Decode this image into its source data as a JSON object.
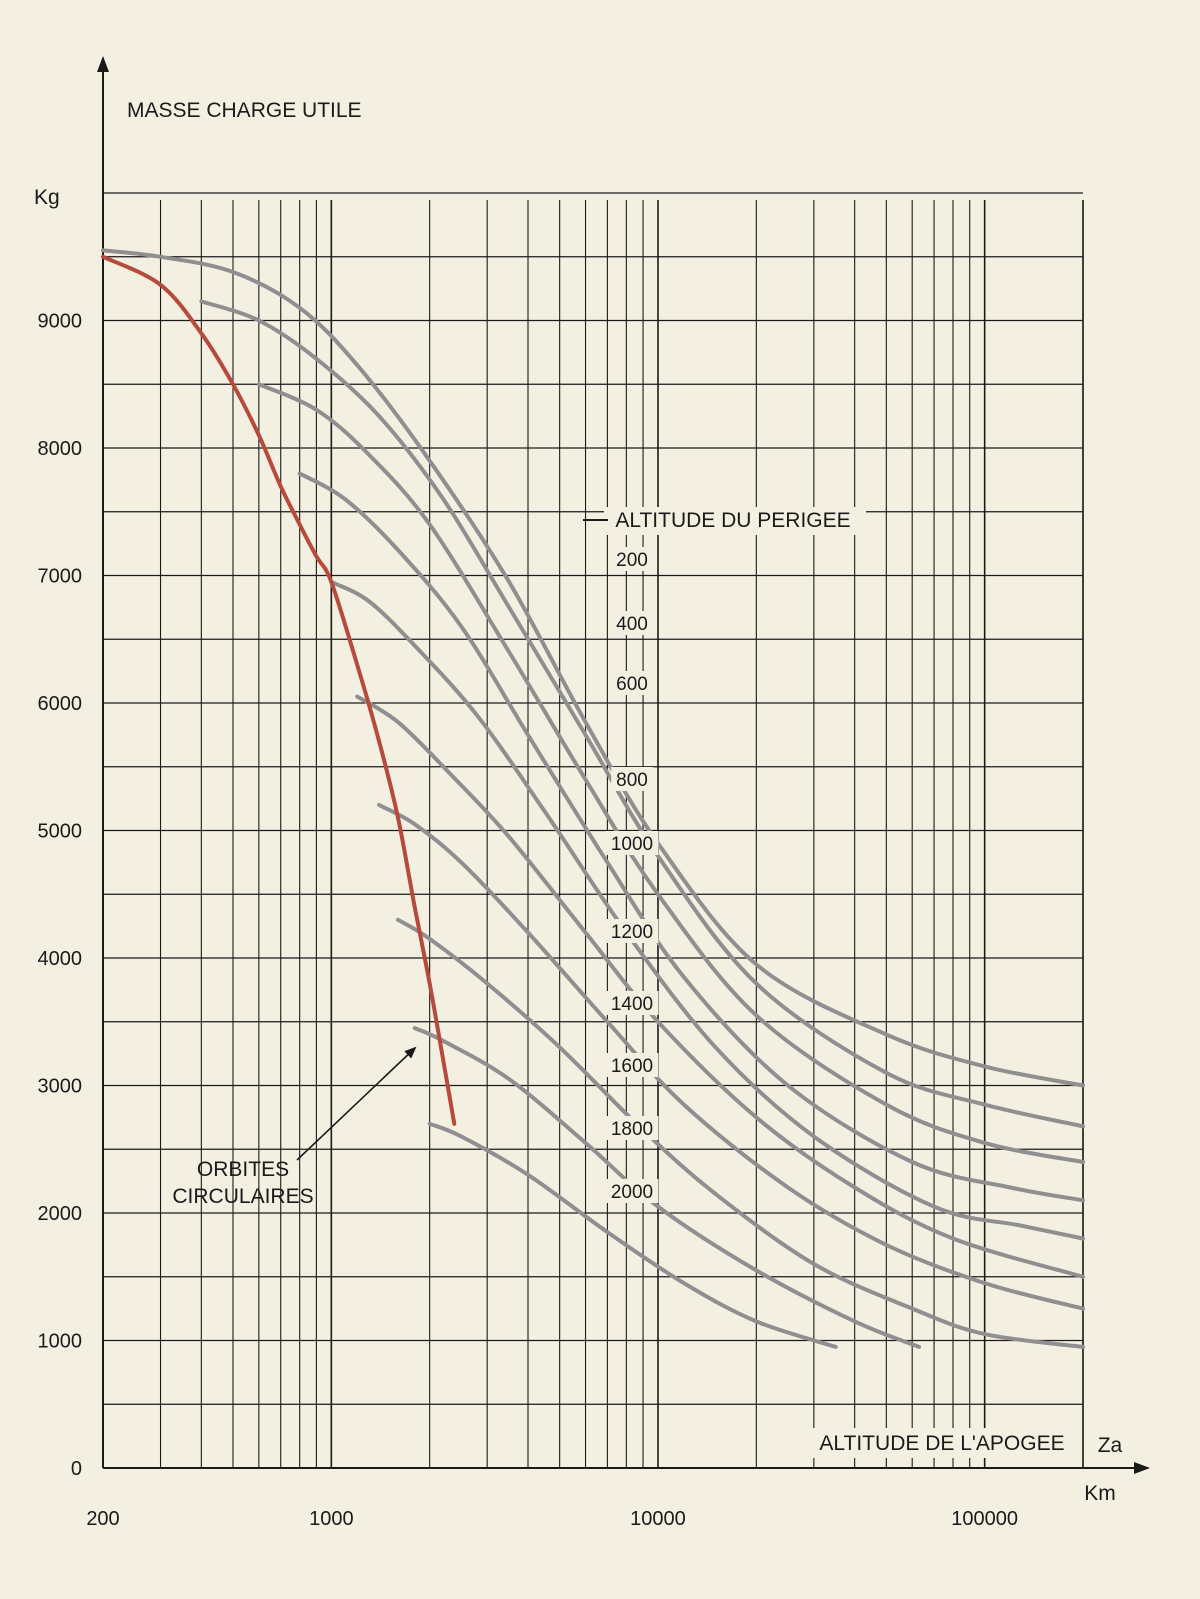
{
  "chart_data": {
    "type": "line",
    "title": "MASSE CHARGE UTILE",
    "y_unit": "Kg",
    "x_label": "ALTITUDE DE L'APOGEE",
    "x_symbol": "Za",
    "x_unit": "Km",
    "x_scale": "log",
    "x_range": [
      200,
      200000
    ],
    "y_range": [
      0,
      10000
    ],
    "grid": true,
    "x_tick_labels": [
      "200",
      "1000",
      "10000",
      "100000"
    ],
    "y_tick_labels": [
      "0",
      "1000",
      "2000",
      "3000",
      "4000",
      "5000",
      "6000",
      "7000",
      "8000",
      "9000"
    ],
    "legend_title": "ALTITUDE DU PERIGEE",
    "circular": {
      "name": "ORBITES CIRCULAIRES",
      "label_lines": [
        "ORBITES",
        "CIRCULAIRES"
      ],
      "color": "#b84a3c",
      "points": [
        [
          200,
          9500
        ],
        [
          300,
          9280
        ],
        [
          400,
          8900
        ],
        [
          500,
          8500
        ],
        [
          600,
          8100
        ],
        [
          700,
          7700
        ],
        [
          800,
          7400
        ],
        [
          900,
          7150
        ],
        [
          1000,
          6950
        ],
        [
          1200,
          6300
        ],
        [
          1400,
          5700
        ],
        [
          1600,
          5100
        ],
        [
          1800,
          4400
        ],
        [
          2000,
          3800
        ],
        [
          2200,
          3200
        ],
        [
          2380,
          2700
        ]
      ]
    },
    "series_color": "#8f8f8f",
    "series": [
      {
        "name": "200",
        "points": [
          [
            200,
            9550
          ],
          [
            300,
            9500
          ],
          [
            500,
            9380
          ],
          [
            800,
            9100
          ],
          [
            1200,
            8650
          ],
          [
            2000,
            7900
          ],
          [
            3500,
            6950
          ],
          [
            6000,
            5850
          ],
          [
            10000,
            4900
          ],
          [
            20000,
            3950
          ],
          [
            50000,
            3400
          ],
          [
            100000,
            3150
          ],
          [
            200000,
            3000
          ]
        ]
      },
      {
        "name": "400",
        "points": [
          [
            400,
            9150
          ],
          [
            600,
            9000
          ],
          [
            900,
            8700
          ],
          [
            1400,
            8250
          ],
          [
            2200,
            7600
          ],
          [
            3500,
            6750
          ],
          [
            6000,
            5750
          ],
          [
            10000,
            4800
          ],
          [
            20000,
            3800
          ],
          [
            50000,
            3100
          ],
          [
            100000,
            2850
          ],
          [
            200000,
            2680
          ]
        ]
      },
      {
        "name": "600",
        "points": [
          [
            600,
            8500
          ],
          [
            900,
            8300
          ],
          [
            1300,
            7950
          ],
          [
            2000,
            7400
          ],
          [
            3500,
            6400
          ],
          [
            6000,
            5400
          ],
          [
            10000,
            4500
          ],
          [
            20000,
            3550
          ],
          [
            50000,
            2850
          ],
          [
            100000,
            2550
          ],
          [
            200000,
            2400
          ]
        ]
      },
      {
        "name": "800",
        "points": [
          [
            800,
            7800
          ],
          [
            1100,
            7600
          ],
          [
            1600,
            7200
          ],
          [
            2500,
            6600
          ],
          [
            4000,
            5750
          ],
          [
            7000,
            4750
          ],
          [
            12000,
            3850
          ],
          [
            25000,
            3000
          ],
          [
            60000,
            2400
          ],
          [
            120000,
            2200
          ],
          [
            200000,
            2100
          ]
        ]
      },
      {
        "name": "1000",
        "points": [
          [
            1000,
            6950
          ],
          [
            1300,
            6800
          ],
          [
            1800,
            6450
          ],
          [
            2800,
            5900
          ],
          [
            4500,
            5150
          ],
          [
            8000,
            4200
          ],
          [
            15000,
            3300
          ],
          [
            30000,
            2600
          ],
          [
            70000,
            2050
          ],
          [
            130000,
            1900
          ],
          [
            200000,
            1800
          ]
        ]
      },
      {
        "name": "1200",
        "points": [
          [
            1200,
            6050
          ],
          [
            1600,
            5850
          ],
          [
            2300,
            5450
          ],
          [
            3500,
            4950
          ],
          [
            6000,
            4200
          ],
          [
            10000,
            3500
          ],
          [
            20000,
            2750
          ],
          [
            40000,
            2200
          ],
          [
            80000,
            1800
          ],
          [
            200000,
            1500
          ]
        ]
      },
      {
        "name": "1400",
        "points": [
          [
            1400,
            5200
          ],
          [
            1800,
            5050
          ],
          [
            2500,
            4750
          ],
          [
            4000,
            4200
          ],
          [
            7000,
            3500
          ],
          [
            12000,
            2850
          ],
          [
            25000,
            2200
          ],
          [
            50000,
            1750
          ],
          [
            100000,
            1450
          ],
          [
            200000,
            1250
          ]
        ]
      },
      {
        "name": "1600",
        "points": [
          [
            1600,
            4300
          ],
          [
            2000,
            4150
          ],
          [
            3000,
            3800
          ],
          [
            5000,
            3300
          ],
          [
            9000,
            2650
          ],
          [
            15000,
            2150
          ],
          [
            30000,
            1600
          ],
          [
            60000,
            1250
          ],
          [
            100000,
            1050
          ],
          [
            200000,
            950
          ]
        ]
      },
      {
        "name": "1800",
        "points": [
          [
            1800,
            3450
          ],
          [
            2200,
            3350
          ],
          [
            3500,
            3050
          ],
          [
            6000,
            2550
          ],
          [
            10000,
            2050
          ],
          [
            20000,
            1550
          ],
          [
            40000,
            1150
          ],
          [
            63000,
            950
          ]
        ]
      },
      {
        "name": "2000",
        "points": [
          [
            2000,
            2700
          ],
          [
            2500,
            2600
          ],
          [
            4000,
            2300
          ],
          [
            7000,
            1850
          ],
          [
            12000,
            1450
          ],
          [
            20000,
            1150
          ],
          [
            35000,
            950
          ]
        ]
      }
    ]
  }
}
